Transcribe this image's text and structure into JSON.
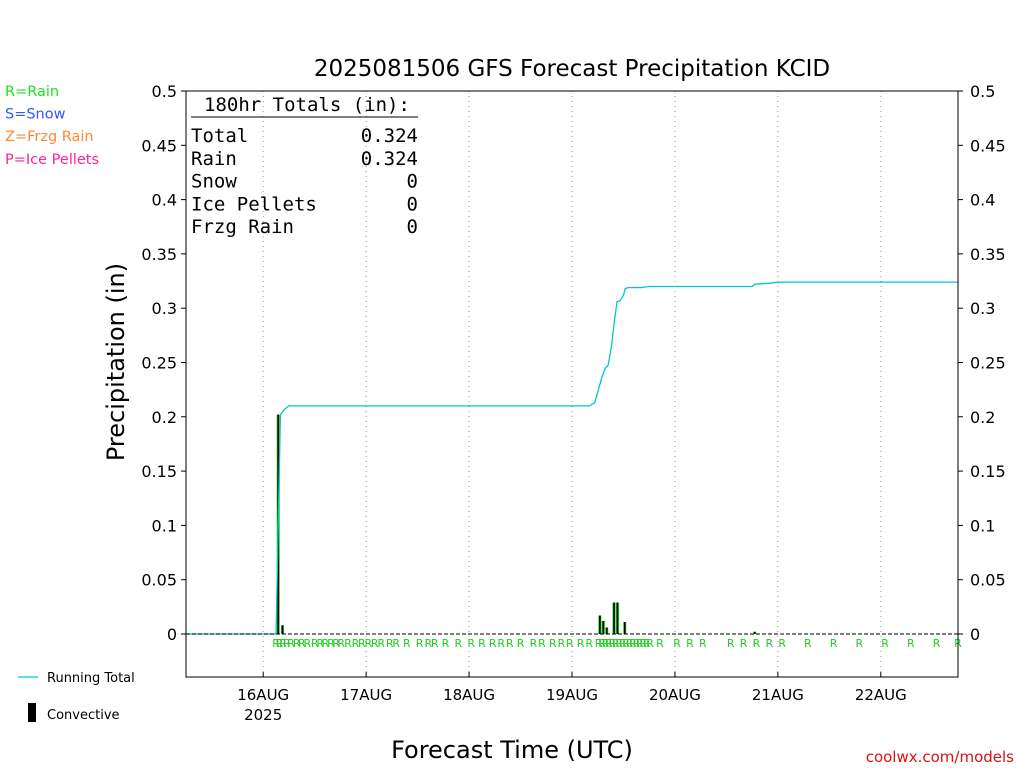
{
  "chart_data": {
    "type": "bar",
    "title": "2025081506 GFS Forecast Precipitation KCID",
    "xlabel": "Forecast Time (UTC)",
    "ylabel": "Precipitation (in)",
    "ylim": [
      0,
      0.5
    ],
    "y_ticks": [
      "0",
      "0.05",
      "0.1",
      "0.15",
      "0.2",
      "0.25",
      "0.3",
      "0.35",
      "0.4",
      "0.45",
      "0.5"
    ],
    "x_unit": "hours from 2025-08-15 06Z",
    "xlim": [
      0,
      180
    ],
    "x_tick_labels": [
      {
        "hour": 18,
        "label": "16AUG",
        "sublabel": "2025"
      },
      {
        "hour": 42,
        "label": "17AUG"
      },
      {
        "hour": 66,
        "label": "18AUG"
      },
      {
        "hour": 90,
        "label": "19AUG"
      },
      {
        "hour": 114,
        "label": "20AUG"
      },
      {
        "hour": 138,
        "label": "21AUG"
      },
      {
        "hour": 162,
        "label": "22AUG"
      }
    ],
    "grid": true,
    "legend_left": [
      {
        "label": "R=Rain",
        "color": "#22dd22"
      },
      {
        "label": "S=Snow",
        "color": "#3355ff"
      },
      {
        "label": "Z=Frzg Rain",
        "color": "#ff8833"
      },
      {
        "label": "P=Ice Pellets",
        "color": "#ff2299"
      }
    ],
    "legend_bottom": [
      {
        "label": "Running Total",
        "color": "#00c8c8"
      },
      {
        "label": "Convective",
        "color": "#000000"
      }
    ],
    "totals_box": {
      "header": "180hr Totals (in):",
      "rows": [
        {
          "label": "Total",
          "value": "0.324"
        },
        {
          "label": "Rain",
          "value": "0.324"
        },
        {
          "label": "Snow",
          "value": "0"
        },
        {
          "label": "Ice Pellets",
          "value": "0"
        },
        {
          "label": "Frzg Rain",
          "value": "0"
        }
      ]
    },
    "bars": [
      {
        "x": 21.5,
        "total": 0.202,
        "convective": 0.202
      },
      {
        "x": 22.5,
        "total": 0.008,
        "convective": 0.008
      },
      {
        "x": 96.5,
        "total": 0.017,
        "convective": 0.017
      },
      {
        "x": 97.3,
        "total": 0.012,
        "convective": 0.012
      },
      {
        "x": 98.1,
        "total": 0.006,
        "convective": 0.006
      },
      {
        "x": 99.8,
        "total": 0.029,
        "convective": 0.029
      },
      {
        "x": 100.6,
        "total": 0.029,
        "convective": 0.029
      },
      {
        "x": 102.3,
        "total": 0.011,
        "convective": 0.011
      },
      {
        "x": 132.6,
        "total": 0.002,
        "convective": 0.002
      }
    ],
    "running_total": {
      "x": [
        0,
        21,
        22,
        23,
        24,
        36,
        48,
        60,
        72,
        84,
        94,
        95.3,
        96.1,
        97,
        97.8,
        98.4,
        99.2,
        99.8,
        100.5,
        101.2,
        102,
        102.4,
        103,
        104,
        106,
        108,
        120,
        132,
        132.6,
        136,
        138,
        150,
        162,
        174,
        180
      ],
      "values": [
        0,
        0,
        0.202,
        0.207,
        0.21,
        0.21,
        0.21,
        0.21,
        0.21,
        0.21,
        0.21,
        0.213,
        0.224,
        0.237,
        0.245,
        0.247,
        0.265,
        0.285,
        0.306,
        0.307,
        0.312,
        0.318,
        0.319,
        0.319,
        0.319,
        0.32,
        0.32,
        0.32,
        0.322,
        0.323,
        0.324,
        0.324,
        0.324,
        0.324,
        0.324
      ]
    },
    "ptype_markers": {
      "symbol": "R",
      "x": [
        21,
        21.8,
        22.6,
        23.5,
        24.5,
        25.8,
        27,
        28.3,
        30,
        31.3,
        32.5,
        33.8,
        35,
        36.2,
        37.8,
        39.5,
        41,
        42.5,
        44,
        45.5,
        47.5,
        49,
        51.5,
        54.5,
        56.5,
        58,
        60.5,
        63.5,
        66.5,
        69,
        71.5,
        73.5,
        75.5,
        78,
        81,
        83,
        85.5,
        87.5,
        89.5,
        92,
        94,
        96.2,
        97,
        97.8,
        98.6,
        99.4,
        100.2,
        101,
        101.8,
        102.6,
        103.4,
        104.2,
        105,
        105.8,
        106.6,
        107.4,
        108.2,
        110.5,
        114.5,
        117.5,
        120.5,
        127,
        130,
        133,
        136,
        139,
        145,
        151,
        157,
        163,
        169,
        175,
        180
      ]
    },
    "watermark": "coolwx.com/models"
  }
}
